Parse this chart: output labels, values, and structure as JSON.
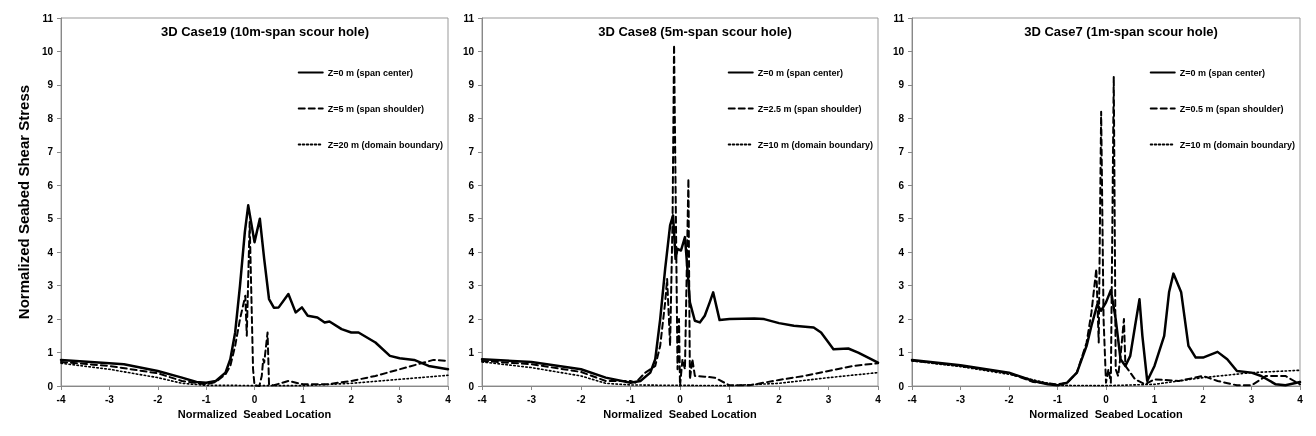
{
  "chart_data": [
    {
      "type": "line",
      "title": "3D Case19 (10m-span scour hole)",
      "xlabel": "Normalized  Seabed Location",
      "ylabel": "Normalized Seabed Shear Stress",
      "xlim": [
        -4,
        4
      ],
      "ylim": [
        0,
        11
      ],
      "xticks": [
        -4,
        -3,
        -2,
        -1,
        0,
        1,
        2,
        3,
        4
      ],
      "yticks": [
        0,
        1,
        2,
        3,
        4,
        5,
        6,
        7,
        8,
        9,
        10,
        11
      ],
      "legend": "top right",
      "series": [
        {
          "name": "Z=0 m (span center)",
          "color": "#000000",
          "line_style": "solid",
          "x": [
            -4,
            -3,
            -2.7,
            -2,
            -1.5,
            -1.2,
            -1,
            -0.8,
            -0.6,
            -0.5,
            -0.4,
            -0.3,
            -0.2,
            -0.13,
            0,
            0.11,
            0.2,
            0.3,
            0.4,
            0.5,
            0.7,
            0.85,
            0.98,
            1.1,
            1.3,
            1.45,
            1.55,
            1.8,
            2,
            2.15,
            2.5,
            2.8,
            3,
            3.3,
            3.6,
            4
          ],
          "values": [
            0.78,
            0.68,
            0.65,
            0.45,
            0.25,
            0.12,
            0.1,
            0.15,
            0.4,
            0.8,
            1.6,
            3,
            4.6,
            5.4,
            4.3,
            5,
            3.8,
            2.6,
            2.34,
            2.35,
            2.75,
            2.2,
            2.35,
            2.1,
            2.05,
            1.9,
            1.93,
            1.7,
            1.6,
            1.6,
            1.3,
            0.9,
            0.83,
            0.78,
            0.6,
            0.5
          ]
        },
        {
          "name": "Z=5 m (span shoulder)",
          "color": "#000000",
          "line_style": "dashed",
          "x": [
            -4,
            -3,
            -2,
            -1.5,
            -1,
            -0.8,
            -0.6,
            -0.5,
            -0.4,
            -0.3,
            -0.19,
            -0.16,
            -0.1,
            -0.03,
            0,
            0.1,
            0.15,
            0.18,
            0.2,
            0.27,
            0.3,
            0.4,
            0.7,
            1,
            1.5,
            2,
            2.5,
            3,
            3.5,
            3.7,
            4
          ],
          "values": [
            0.72,
            0.6,
            0.38,
            0.15,
            0.05,
            0.12,
            0.35,
            0.6,
            1.2,
            2,
            2.7,
            1.5,
            4.9,
            0.5,
            0.02,
            0,
            0.3,
            0.8,
            0.7,
            1.6,
            0.05,
            0.02,
            0.15,
            0.05,
            0.05,
            0.15,
            0.3,
            0.5,
            0.7,
            0.78,
            0.75
          ]
        },
        {
          "name": "Z=20 m (domain boundary)",
          "color": "#000000",
          "line_style": "dotted",
          "x": [
            -4,
            -3,
            -2,
            -1.5,
            -1,
            -0.5,
            0,
            1,
            2,
            3,
            4
          ],
          "values": [
            0.68,
            0.5,
            0.25,
            0.08,
            0.02,
            0.02,
            0.01,
            0.01,
            0.08,
            0.2,
            0.32
          ]
        }
      ]
    },
    {
      "type": "line",
      "title": "3D Case8 (5m-span scour hole)",
      "xlabel": "Normalized  Seabed Location",
      "xlim": [
        -4,
        4
      ],
      "ylim": [
        0,
        11
      ],
      "xticks": [
        -4,
        -3,
        -2,
        -1,
        0,
        1,
        2,
        3,
        4
      ],
      "yticks": [
        0,
        1,
        2,
        3,
        4,
        5,
        6,
        7,
        8,
        9,
        10,
        11
      ],
      "legend": "top right",
      "series": [
        {
          "name": "Z=0 m (span center)",
          "color": "#000000",
          "line_style": "solid",
          "x": [
            -4,
            -3,
            -2,
            -1.5,
            -1,
            -0.8,
            -0.6,
            -0.5,
            -0.4,
            -0.3,
            -0.2,
            -0.14,
            -0.09,
            -0.05,
            0.02,
            0.1,
            0.15,
            0.2,
            0.3,
            0.4,
            0.5,
            0.6,
            0.67,
            0.8,
            1,
            1.5,
            1.7,
            2,
            2.3,
            2.7,
            2.85,
            3,
            3.1,
            3.4,
            3.6,
            4
          ],
          "values": [
            0.8,
            0.72,
            0.5,
            0.25,
            0.1,
            0.15,
            0.4,
            0.8,
            2,
            3.5,
            4.8,
            5.1,
            3.8,
            4.1,
            4.05,
            4.45,
            3.5,
            2.5,
            1.95,
            1.9,
            2.1,
            2.5,
            2.8,
            1.97,
            2,
            2.02,
            2,
            1.88,
            1.8,
            1.75,
            1.6,
            1.3,
            1.1,
            1.12,
            1,
            0.7
          ]
        },
        {
          "name": "Z=2.5 m (span shoulder)",
          "color": "#000000",
          "line_style": "dashed",
          "x": [
            -4,
            -3,
            -2,
            -1.5,
            -1,
            -0.9,
            -0.7,
            -0.5,
            -0.4,
            -0.3,
            -0.26,
            -0.2,
            -0.15,
            -0.12,
            -0.05,
            -0.02,
            0,
            0.05,
            0.1,
            0.17,
            0.2,
            0.25,
            0.3,
            0.5,
            0.7,
            1,
            1.4,
            2,
            2.5,
            3,
            3.5,
            4
          ],
          "values": [
            0.75,
            0.65,
            0.42,
            0.15,
            0.15,
            0.1,
            0.4,
            0.6,
            1.2,
            2.5,
            3.2,
            1.2,
            5,
            10.2,
            0.5,
            2,
            0,
            0.8,
            0.5,
            6.2,
            0.2,
            0.8,
            0.3,
            0.28,
            0.25,
            0.02,
            0.02,
            0.18,
            0.3,
            0.45,
            0.6,
            0.68
          ]
        },
        {
          "name": "Z=10 m (domain boundary)",
          "color": "#000000",
          "line_style": "dotted",
          "x": [
            -4,
            -3,
            -2,
            -1.5,
            -1,
            0,
            1,
            2,
            3,
            4
          ],
          "values": [
            0.72,
            0.55,
            0.3,
            0.08,
            0.03,
            0.02,
            0.01,
            0.08,
            0.25,
            0.4
          ]
        }
      ]
    },
    {
      "type": "line",
      "title": "3D Case7 (1m-span scour hole)",
      "xlabel": "Normalized  Seabed Location",
      "xlim": [
        -4,
        4
      ],
      "ylim": [
        0,
        11
      ],
      "xticks": [
        -4,
        -3,
        -2,
        -1,
        0,
        1,
        2,
        3,
        4
      ],
      "yticks": [
        0,
        1,
        2,
        3,
        4,
        5,
        6,
        7,
        8,
        9,
        10,
        11
      ],
      "legend": "top right",
      "series": [
        {
          "name": "Z=0 m (span center)",
          "color": "#000000",
          "line_style": "solid",
          "x": [
            -4,
            -3,
            -2,
            -1.5,
            -1.2,
            -1,
            -0.8,
            -0.6,
            -0.4,
            -0.3,
            -0.18,
            -0.1,
            0,
            0.1,
            0.2,
            0.3,
            0.4,
            0.5,
            0.6,
            0.69,
            0.75,
            0.85,
            1,
            1.2,
            1.3,
            1.39,
            1.55,
            1.7,
            1.85,
            2,
            2.3,
            2.5,
            2.7,
            3,
            3.2,
            3.5,
            3.7,
            4
          ],
          "values": [
            0.78,
            0.62,
            0.4,
            0.15,
            0.05,
            0.02,
            0.1,
            0.4,
            1.2,
            1.8,
            2.43,
            2.25,
            2.5,
            2.86,
            2,
            0.8,
            0.6,
            0.9,
            1.8,
            2.59,
            1.5,
            0.15,
            0.6,
            1.5,
            2.8,
            3.36,
            2.8,
            1.2,
            0.85,
            0.85,
            1.02,
            0.8,
            0.45,
            0.4,
            0.3,
            0.05,
            0.02,
            0.12
          ]
        },
        {
          "name": "Z=0.5 m (span shoulder)",
          "color": "#000000",
          "line_style": "dashed",
          "x": [
            -4,
            -3,
            -2,
            -1.5,
            -1,
            -0.8,
            -0.6,
            -0.4,
            -0.3,
            -0.2,
            -0.15,
            -0.12,
            -0.1,
            -0.05,
            0,
            0.05,
            0.1,
            0.16,
            0.2,
            0.25,
            0.3,
            0.37,
            0.4,
            0.5,
            0.6,
            0.8,
            1,
            1.5,
            2,
            2.3,
            2.7,
            3,
            3.3,
            3.7,
            4
          ],
          "values": [
            0.76,
            0.6,
            0.38,
            0.12,
            0.05,
            0.1,
            0.4,
            1.3,
            2.2,
            3.5,
            1.3,
            5.5,
            8.2,
            2,
            0.1,
            0.5,
            0.1,
            9.25,
            0.5,
            0.3,
            0.9,
            2,
            0.6,
            0.4,
            0.2,
            0.05,
            0.2,
            0.15,
            0.3,
            0.15,
            0.02,
            0.02,
            0.3,
            0.3,
            0.05
          ]
        },
        {
          "name": "Z=10 m (domain boundary)",
          "color": "#000000",
          "line_style": "dotted",
          "x": [
            -4,
            -3,
            -2,
            -1,
            0,
            1,
            2,
            3,
            4
          ],
          "values": [
            0.75,
            0.58,
            0.35,
            0.02,
            0.01,
            0.05,
            0.25,
            0.4,
            0.47
          ]
        }
      ]
    }
  ]
}
